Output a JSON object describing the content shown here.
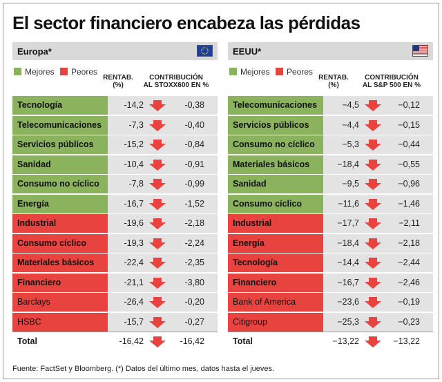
{
  "title": "El sector financiero encabeza las pérdidas",
  "legend": {
    "best": "Mejores",
    "worst": "Peores"
  },
  "colors": {
    "best": "#8bb35e",
    "worst": "#e8433f",
    "arrow": "#e8433f",
    "header_bg": "#d9d9d9",
    "cell_bg": "#e3e3e3"
  },
  "chart_data": [
    {
      "type": "table",
      "panel": "Europa*",
      "flag_icon": "eu-flag-icon",
      "col_rentab": [
        "RENTAB.",
        "(%)"
      ],
      "col_contrib": [
        "CONTRIBUCIÓN",
        "AL STOXX600 EN %"
      ],
      "rows": [
        {
          "label": "Tecnología",
          "group": "best",
          "rentab": "-14,2",
          "contrib": "-0,38"
        },
        {
          "label": "Telecomunicaciones",
          "group": "best",
          "rentab": "-7,3",
          "contrib": "-0,40"
        },
        {
          "label": "Servicios públicos",
          "group": "best",
          "rentab": "-15,2",
          "contrib": "-0,84"
        },
        {
          "label": "Sanidad",
          "group": "best",
          "rentab": "-10,4",
          "contrib": "-0,91"
        },
        {
          "label": "Consumo no cíclico",
          "group": "best",
          "rentab": "-7,8",
          "contrib": "-0,99"
        },
        {
          "label": "Energía",
          "group": "best",
          "rentab": "-16,7",
          "contrib": "-1,52"
        },
        {
          "label": "Industrial",
          "group": "worst",
          "rentab": "-19,6",
          "contrib": "-2,18"
        },
        {
          "label": "Consumo cíclico",
          "group": "worst",
          "rentab": "-19,3",
          "contrib": "-2,24"
        },
        {
          "label": "Materiales básicos",
          "group": "worst",
          "rentab": "-22,4",
          "contrib": "-2,35"
        },
        {
          "label": "Financiero",
          "group": "worst",
          "rentab": "-21,1",
          "contrib": "-3,80"
        },
        {
          "label": "Barclays",
          "group": "worst-sub",
          "rentab": "-26,4",
          "contrib": "-0,20"
        },
        {
          "label": "HSBC",
          "group": "worst-sub",
          "rentab": "-15,7",
          "contrib": "-0,27"
        },
        {
          "label": "Total",
          "group": "total",
          "rentab": "-16,42",
          "contrib": "-16,42"
        }
      ]
    },
    {
      "type": "table",
      "panel": "EEUU*",
      "flag_icon": "us-flag-icon",
      "col_rentab": [
        "RENTAB.",
        "(%)"
      ],
      "col_contrib": [
        "CONTRIBUCIÓN",
        "AL S&P 500 EN %"
      ],
      "rows": [
        {
          "label": "Telecomunicaciones",
          "group": "best",
          "rentab": "−4,5",
          "contrib": "−0,12"
        },
        {
          "label": "Servicios públicos",
          "group": "best",
          "rentab": "−4,4",
          "contrib": "−0,15"
        },
        {
          "label": "Consumo no cíclico",
          "group": "best",
          "rentab": "−5,3",
          "contrib": "−0,44"
        },
        {
          "label": "Materiales básicos",
          "group": "best",
          "rentab": "−18,4",
          "contrib": "−0,55"
        },
        {
          "label": "Sanidad",
          "group": "best",
          "rentab": "−9,5",
          "contrib": "−0,96"
        },
        {
          "label": "Consumo cíclico",
          "group": "best",
          "rentab": "−11,6",
          "contrib": "−1,46"
        },
        {
          "label": "Industrial",
          "group": "worst",
          "rentab": "−17,7",
          "contrib": "−2,11"
        },
        {
          "label": "Energía",
          "group": "worst",
          "rentab": "−18,4",
          "contrib": "−2,18"
        },
        {
          "label": "Tecnología",
          "group": "worst",
          "rentab": "−14,4",
          "contrib": "−2,44"
        },
        {
          "label": "Financiero",
          "group": "worst",
          "rentab": "−16,7",
          "contrib": "−2,46"
        },
        {
          "label": "Bank of America",
          "group": "worst-sub",
          "rentab": "−23,6",
          "contrib": "−0,19"
        },
        {
          "label": "Citigroup",
          "group": "worst-sub",
          "rentab": "−25,3",
          "contrib": "−0,23"
        },
        {
          "label": "Total",
          "group": "total",
          "rentab": "−13,22",
          "contrib": "−13,22"
        }
      ]
    }
  ],
  "source": "Fuente: FactSet y Bloomberg. (*) Datos del último mes, datos hasta el jueves."
}
